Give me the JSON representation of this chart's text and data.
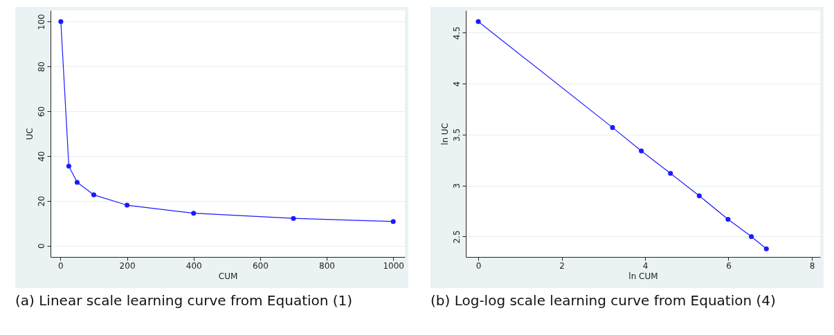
{
  "chart_data": [
    {
      "type": "line",
      "xlabel": "CUM",
      "ylabel": "UC",
      "x": [
        1,
        25,
        50,
        100,
        200,
        400,
        700,
        1000
      ],
      "series": [
        {
          "color": "#1a1aff",
          "values": [
            100,
            35.5,
            28.3,
            22.7,
            18.1,
            14.5,
            12.2,
            10.8
          ]
        }
      ],
      "xlim": [
        -30,
        1035
      ],
      "ylim": [
        -5,
        105
      ],
      "xticks": [
        0,
        200,
        400,
        600,
        800,
        1000
      ],
      "yticks": [
        0,
        20,
        40,
        60,
        80,
        100
      ],
      "grid": "y",
      "marker": "circle",
      "line_style": "solid",
      "annotations": [
        "(a) Linear scale learning curve from Equation (1)"
      ]
    },
    {
      "type": "line",
      "xlabel": "ln CUM",
      "ylabel": "ln UC",
      "x": [
        0,
        3.22,
        3.91,
        4.61,
        5.3,
        5.99,
        6.55,
        6.91
      ],
      "series": [
        {
          "color": "#1a1aff",
          "values": [
            4.61,
            3.57,
            3.34,
            3.12,
            2.9,
            2.67,
            2.5,
            2.38
          ]
        }
      ],
      "xlim": [
        -0.3,
        8.2
      ],
      "ylim": [
        2.3,
        4.72
      ],
      "xticks": [
        0,
        2,
        4,
        6,
        8
      ],
      "yticks": [
        2.5,
        3,
        3.5,
        4,
        4.5
      ],
      "grid": "y",
      "marker": "circle",
      "line_style": "solid",
      "annotations": [
        "(b) Log-log scale learning curve from Equation (4)"
      ]
    }
  ]
}
